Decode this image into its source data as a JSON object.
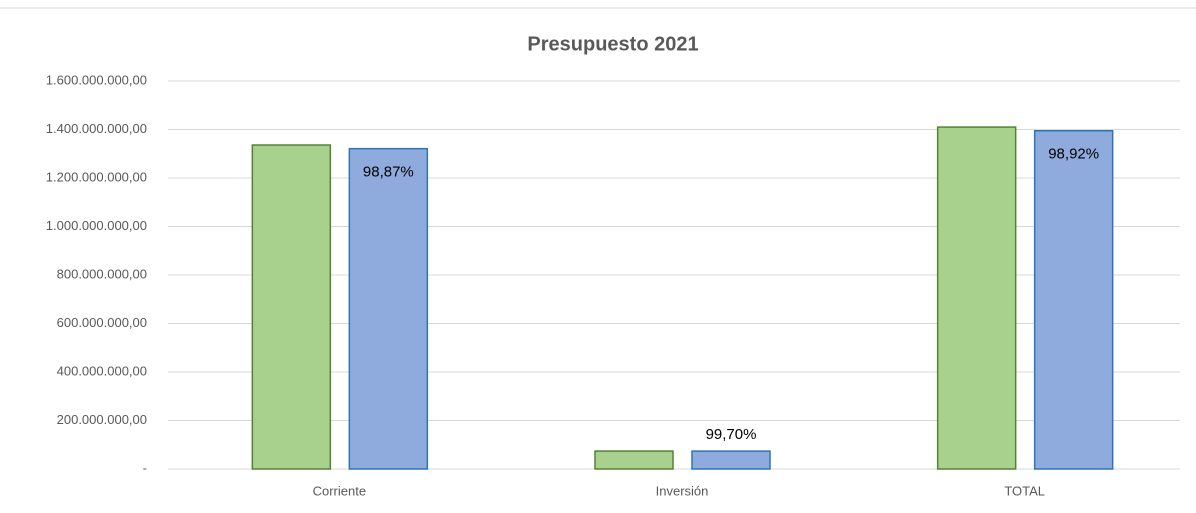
{
  "chart_data": {
    "type": "bar",
    "title": "Presupuesto 2021",
    "categories": [
      "Corriente",
      "Inversión",
      "TOTAL"
    ],
    "series": [
      {
        "color": "#a9d18e",
        "border": "#548235",
        "values": [
          1336000000,
          74000000,
          1410000000
        ]
      },
      {
        "color": "#8faadc",
        "border": "#2e75b6",
        "values": [
          1321000000,
          73780000,
          1394780000
        ]
      }
    ],
    "annotations": [
      "98,87%",
      "99,70%",
      "98,92%"
    ],
    "ylim": [
      0,
      1600000000
    ],
    "yticks": [
      {
        "value": 0,
        "label": "-"
      },
      {
        "value": 200000000,
        "label": "200.000.000,00"
      },
      {
        "value": 400000000,
        "label": "400.000.000,00"
      },
      {
        "value": 600000000,
        "label": "600.000.000,00"
      },
      {
        "value": 800000000,
        "label": "800.000.000,00"
      },
      {
        "value": 1000000000,
        "label": "1.000.000.000,00"
      },
      {
        "value": 1200000000,
        "label": "1.200.000.000,00"
      },
      {
        "value": 1400000000,
        "label": "1.400.000.000,00"
      },
      {
        "value": 1600000000,
        "label": "1.600.000.000,00"
      }
    ],
    "grid": true
  }
}
